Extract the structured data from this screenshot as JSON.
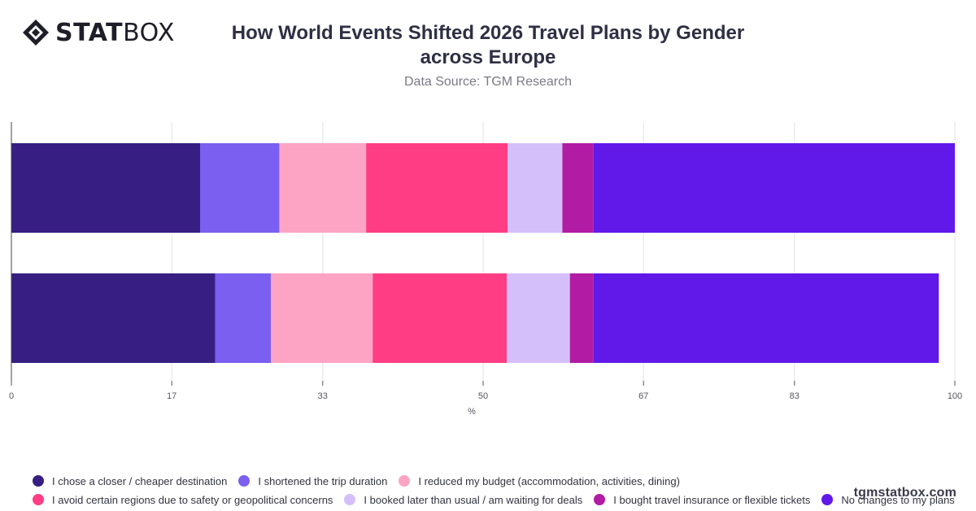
{
  "brand": {
    "bold": "STAT",
    "light": "BOX",
    "logo_icon": "diamond-logo-icon"
  },
  "watermark": "tgmstatbox.com",
  "chart_data": {
    "type": "bar",
    "orientation": "horizontal",
    "stacked": true,
    "title": "How World Events Shifted 2026 Travel Plans by Gender across Europe",
    "subtitle": "Data Source: TGM Research",
    "xlabel": "%",
    "ylabel": "",
    "xlim": [
      0,
      100
    ],
    "xticks": [
      "0",
      "17",
      "33",
      "50",
      "67",
      "83",
      "100"
    ],
    "grid": true,
    "legend_position": "bottom",
    "categories": [
      "",
      ""
    ],
    "series": [
      {
        "name": "I chose a closer / cheaper destination",
        "color": "#371e82",
        "values": [
          20,
          21.6
        ]
      },
      {
        "name": "I shortened the trip duration",
        "color": "#7b5ff0",
        "values": [
          8.4,
          5.9
        ]
      },
      {
        "name": "I reduced my budget (accommodation, activities, dining)",
        "color": "#fda4c4",
        "values": [
          9.2,
          10.8
        ]
      },
      {
        "name": "I avoid certain regions due to safety or geopolitical concerns",
        "color": "#ff3d84",
        "values": [
          15,
          14.2
        ]
      },
      {
        "name": "I booked later than usual / am waiting for deals",
        "color": "#d5bffb",
        "values": [
          5.8,
          6.7
        ]
      },
      {
        "name": "I bought travel insurance or flexible tickets",
        "color": "#b21ba3",
        "values": [
          3.3,
          2.5
        ]
      },
      {
        "name": "No changes to my plans",
        "color": "#6119ea",
        "values": [
          38.3,
          36.6
        ]
      }
    ]
  }
}
